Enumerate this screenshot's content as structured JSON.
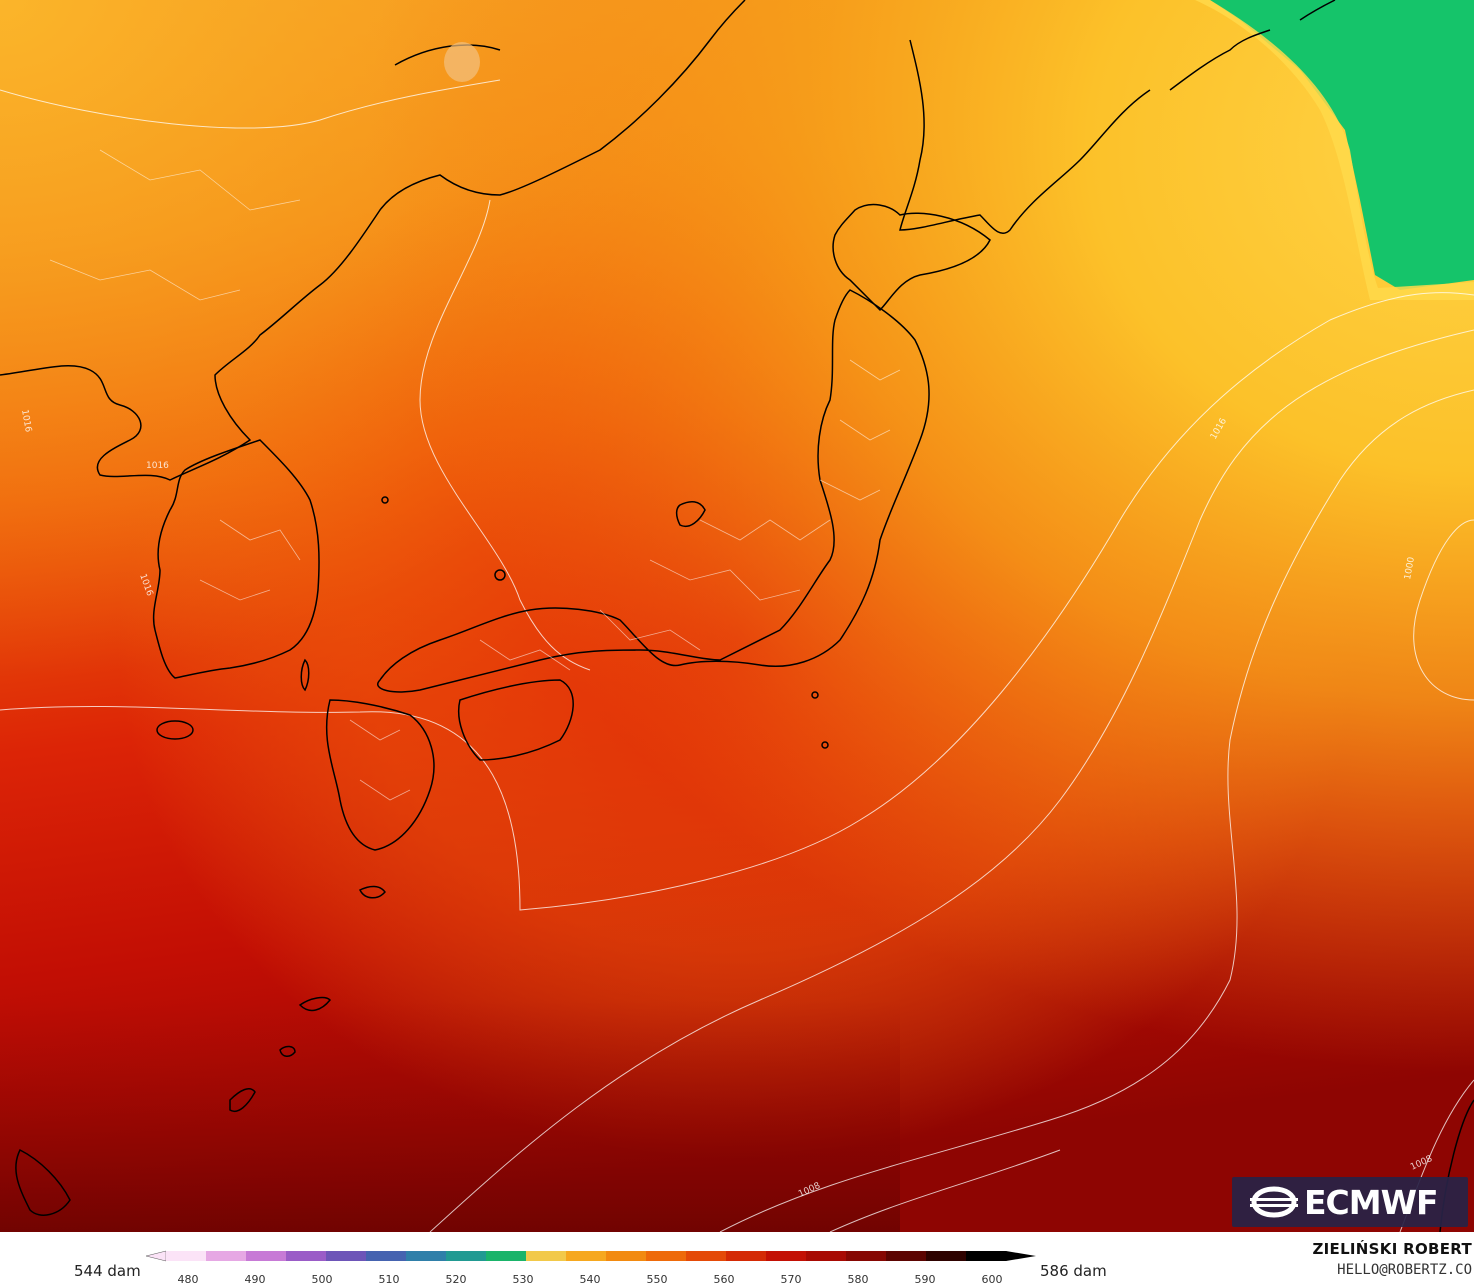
{
  "logo": {
    "text": "ECMWF",
    "icon": "ecmwf-logo-icon"
  },
  "colorbar": {
    "min_label": "544 dam",
    "max_label": "586 dam",
    "ticks": [
      "480",
      "490",
      "500",
      "510",
      "520",
      "530",
      "540",
      "550",
      "560",
      "570",
      "580",
      "590",
      "600"
    ],
    "colors": [
      "#fbe3f7",
      "#e6a8e4",
      "#c77ad6",
      "#9a5cc7",
      "#6d55b8",
      "#4563b0",
      "#2f7fa9",
      "#219a92",
      "#1ab46a",
      "#f2c94a",
      "#f6a81f",
      "#f28a10",
      "#ee6a0a",
      "#e44a08",
      "#d42a05",
      "#c31004",
      "#a80a03",
      "#860702",
      "#5c0401",
      "#2e0200",
      "#000000"
    ]
  },
  "author": {
    "name": "ZIELIŃSKI ROBERT",
    "email": "HELLO@ROBERTZ.CO"
  },
  "isobars": [
    "1016",
    "1016",
    "1016",
    "1016",
    "1008",
    "1008",
    "1000"
  ],
  "palette": {
    "green": "#15c46a",
    "yellow": "#fdc12a",
    "orange": "#f47c10",
    "red": "#d81b08",
    "darkred": "#8a0602"
  }
}
